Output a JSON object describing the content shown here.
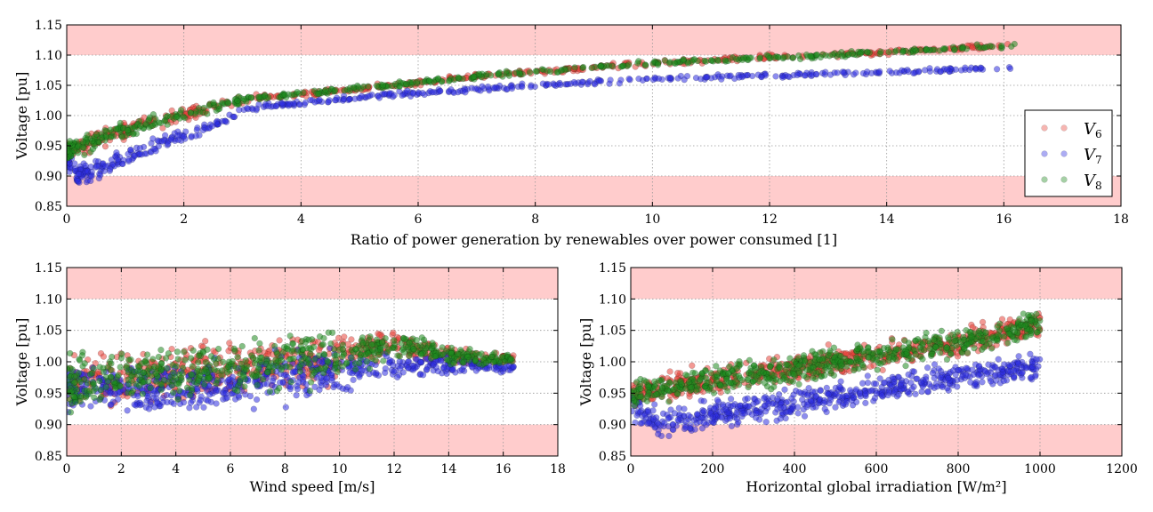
{
  "colors": {
    "V6": "#e8453c",
    "V7": "#3030e0",
    "V8": "#1f8a1f",
    "limit_band": "#ffcccc",
    "grid": "#999999"
  },
  "legend": {
    "placement": "right",
    "entries": [
      {
        "key": "V6",
        "symbol": "V",
        "sub": "6"
      },
      {
        "key": "V7",
        "symbol": "V",
        "sub": "7"
      },
      {
        "key": "V8",
        "symbol": "V",
        "sub": "8"
      }
    ]
  },
  "chart_data": [
    {
      "id": "ratio",
      "type": "scatter",
      "xlabel": "Ratio of power generation by renewables over power consumed [1]",
      "ylabel": "Voltage [pu]",
      "xlim": [
        0,
        18
      ],
      "ylim": [
        0.85,
        1.15
      ],
      "xticks": [
        0,
        2,
        4,
        6,
        8,
        10,
        12,
        14,
        16,
        18
      ],
      "yticks": [
        0.85,
        0.9,
        0.95,
        1.0,
        1.05,
        1.1,
        1.15
      ],
      "grid": true,
      "limit_bands": [
        [
          0.85,
          0.9
        ],
        [
          1.1,
          1.15
        ]
      ],
      "series": [
        {
          "name": "V6",
          "x": [
            0,
            0.5,
            1,
            1.5,
            2,
            2.5,
            3,
            3.3,
            4,
            5,
            6,
            7,
            8,
            9,
            10,
            11,
            12,
            13,
            14,
            15,
            16,
            16.2
          ],
          "y": [
            0.94,
            0.96,
            0.975,
            0.99,
            1.0,
            1.015,
            1.025,
            1.03,
            1.035,
            1.045,
            1.055,
            1.065,
            1.072,
            1.08,
            1.087,
            1.092,
            1.097,
            1.1,
            1.105,
            1.11,
            1.115,
            1.116
          ]
        },
        {
          "name": "V7",
          "x": [
            0,
            0.2,
            0.5,
            1,
            1.5,
            2,
            2.5,
            3,
            3.3,
            4,
            5,
            6,
            7,
            8,
            9,
            10,
            11,
            12,
            13,
            14,
            15,
            16,
            16.2
          ],
          "y": [
            0.93,
            0.9,
            0.91,
            0.93,
            0.95,
            0.965,
            0.985,
            1.005,
            1.015,
            1.02,
            1.03,
            1.037,
            1.043,
            1.05,
            1.055,
            1.06,
            1.063,
            1.066,
            1.069,
            1.072,
            1.075,
            1.079,
            1.08
          ]
        },
        {
          "name": "V8",
          "x": [
            0,
            0.5,
            1,
            1.5,
            2,
            2.5,
            3,
            3.3,
            4,
            5,
            6,
            7,
            8,
            9,
            10,
            11,
            12,
            13,
            14,
            15,
            16,
            16.2
          ],
          "y": [
            0.94,
            0.96,
            0.975,
            0.99,
            1.0,
            1.015,
            1.025,
            1.03,
            1.035,
            1.045,
            1.055,
            1.065,
            1.072,
            1.08,
            1.087,
            1.092,
            1.097,
            1.1,
            1.105,
            1.11,
            1.115,
            1.117
          ]
        }
      ]
    },
    {
      "id": "wind",
      "type": "scatter",
      "xlabel": "Wind speed [m/s]",
      "ylabel": "Voltage [pu]",
      "xlim": [
        0,
        18
      ],
      "ylim": [
        0.85,
        1.15
      ],
      "xticks": [
        0,
        2,
        4,
        6,
        8,
        10,
        12,
        14,
        16,
        18
      ],
      "yticks": [
        0.85,
        0.9,
        0.95,
        1.0,
        1.05,
        1.1,
        1.15
      ],
      "grid": true,
      "limit_bands": [
        [
          0.85,
          0.9
        ],
        [
          1.1,
          1.15
        ]
      ],
      "series": [
        {
          "name": "V6",
          "x": [
            0,
            1,
            2,
            3,
            4,
            5,
            6,
            7,
            8,
            9,
            10,
            11,
            12,
            13,
            14,
            15,
            16,
            16.4
          ],
          "y": [
            0.965,
            0.97,
            0.975,
            0.98,
            0.98,
            0.985,
            0.99,
            0.995,
            1.0,
            1.005,
            1.01,
            1.02,
            1.03,
            1.02,
            1.01,
            1.005,
            1.005,
            1.005
          ]
        },
        {
          "name": "V7",
          "x": [
            0,
            1,
            2,
            3,
            4,
            5,
            6,
            7,
            8,
            9,
            10,
            11,
            12,
            13,
            14,
            15,
            16,
            16.4
          ],
          "y": [
            0.955,
            0.955,
            0.955,
            0.955,
            0.955,
            0.96,
            0.965,
            0.97,
            0.975,
            0.98,
            0.985,
            0.99,
            0.995,
            0.995,
            0.995,
            0.995,
            0.99,
            0.99
          ]
        },
        {
          "name": "V8",
          "x": [
            0,
            1,
            2,
            3,
            4,
            5,
            6,
            7,
            8,
            9,
            10,
            11,
            12,
            13,
            14,
            15,
            16,
            16.4
          ],
          "y": [
            0.965,
            0.97,
            0.975,
            0.98,
            0.98,
            0.985,
            0.99,
            0.995,
            1.0,
            1.005,
            1.01,
            1.02,
            1.03,
            1.02,
            1.01,
            1.005,
            1.005,
            1.005
          ]
        }
      ]
    },
    {
      "id": "irradiation",
      "type": "scatter",
      "xlabel": "Horizontal global irradiation [W/m²]",
      "ylabel": "Voltage [pu]",
      "xlim": [
        0,
        1200
      ],
      "ylim": [
        0.85,
        1.15
      ],
      "xticks": [
        0,
        200,
        400,
        600,
        800,
        1000,
        1200
      ],
      "yticks": [
        0.85,
        0.9,
        0.95,
        1.0,
        1.05,
        1.1,
        1.15
      ],
      "grid": true,
      "limit_bands": [
        [
          0.85,
          0.9
        ],
        [
          1.1,
          1.15
        ]
      ],
      "series": [
        {
          "name": "V6",
          "x": [
            0,
            100,
            200,
            300,
            400,
            500,
            600,
            700,
            800,
            900,
            1000
          ],
          "y": [
            0.95,
            0.96,
            0.97,
            0.98,
            0.99,
            1.0,
            1.01,
            1.02,
            1.03,
            1.045,
            1.06
          ]
        },
        {
          "name": "V7",
          "x": [
            0,
            70,
            100,
            200,
            300,
            400,
            500,
            600,
            700,
            800,
            900,
            1000
          ],
          "y": [
            0.93,
            0.9,
            0.905,
            0.915,
            0.925,
            0.935,
            0.945,
            0.955,
            0.965,
            0.975,
            0.985,
            0.995
          ]
        },
        {
          "name": "V8",
          "x": [
            0,
            100,
            200,
            300,
            400,
            500,
            600,
            700,
            800,
            900,
            1000
          ],
          "y": [
            0.95,
            0.96,
            0.97,
            0.98,
            0.99,
            1.0,
            1.01,
            1.02,
            1.03,
            1.045,
            1.06
          ]
        }
      ]
    }
  ]
}
